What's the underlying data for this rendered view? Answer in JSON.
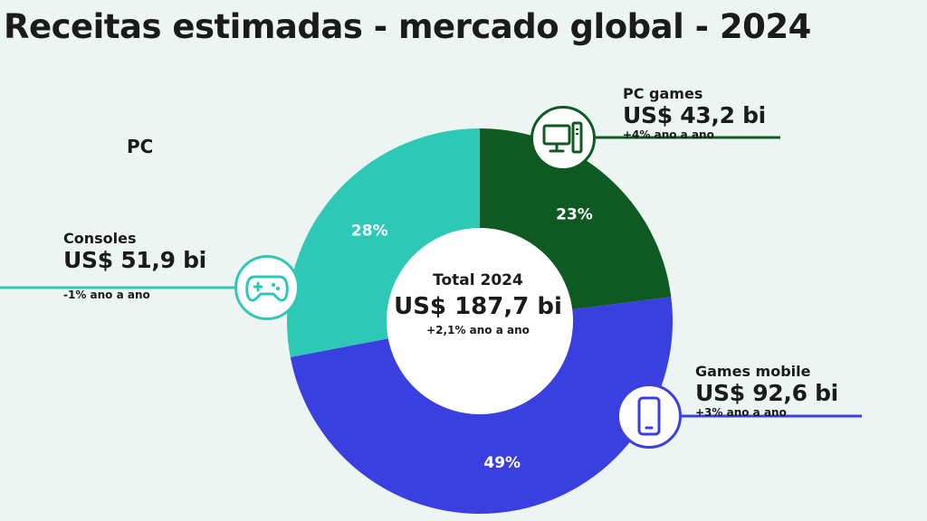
{
  "title": "Receitas estimadas - mercado global - 2024",
  "pc_marker": "PC",
  "center": {
    "title": "Total 2024",
    "value": "US$ 187,7 bi",
    "growth": "+2,1% ano a ano"
  },
  "segments": {
    "consoles": {
      "name": "Consoles",
      "value": "US$ 51,9 bi",
      "growth": "-1% ano a ano",
      "percent_label": "28%",
      "icon": "gamepad-icon",
      "color": "#2ec8b6"
    },
    "pc": {
      "name": "PC games",
      "value": "US$ 43,2 bi",
      "growth": "+4% ano a ano",
      "percent_label": "23%",
      "icon": "computer-icon",
      "color": "#0f5a22"
    },
    "mobile": {
      "name": "Games mobile",
      "value": "US$ 92,6 bi",
      "growth": "+3% ano a ano",
      "percent_label": "49%",
      "icon": "smartphone-icon",
      "color": "#3a3fe0"
    }
  },
  "chart_data": {
    "type": "pie",
    "title": "Receitas estimadas - mercado global - 2024",
    "labels": [
      "PC games",
      "Games mobile",
      "Consoles"
    ],
    "values": [
      23,
      49,
      28
    ],
    "values_usd_bi": [
      43.2,
      92.6,
      51.9
    ],
    "colors": [
      "#0f5a22",
      "#3a3fe0",
      "#2ec8b6"
    ],
    "total": "US$ 187,7 bi"
  }
}
